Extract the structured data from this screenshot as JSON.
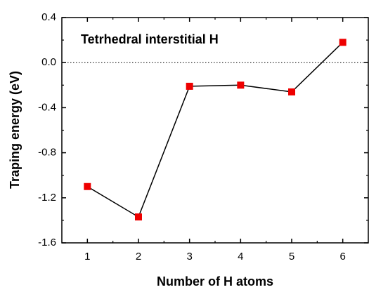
{
  "chart_data": {
    "type": "line",
    "annotation": "Tetrhedral interstitial H",
    "x_label": "Number of H atoms",
    "y_label": "Traping energy (eV)",
    "x": [
      1,
      2,
      3,
      4,
      5,
      6
    ],
    "series": [
      {
        "color": "#ee0000",
        "values": [
          -1.1,
          -1.37,
          -0.21,
          -0.2,
          -0.26,
          0.18
        ]
      }
    ],
    "xlim": [
      0.5,
      6.5
    ],
    "xticks": [
      1,
      2,
      3,
      4,
      5,
      6
    ],
    "ylim": [
      -1.6,
      0.4
    ],
    "yticks": [
      {
        "value": -1.6,
        "label": "-1.6"
      },
      {
        "value": -1.2,
        "label": "-1.2"
      },
      {
        "value": -0.8,
        "label": "-0.8"
      },
      {
        "value": -0.4,
        "label": "-0.4"
      },
      {
        "value": 0,
        "label": "0.0"
      },
      {
        "value": 0.4,
        "label": "0.4"
      }
    ],
    "reference_line": 0,
    "grid": false
  }
}
